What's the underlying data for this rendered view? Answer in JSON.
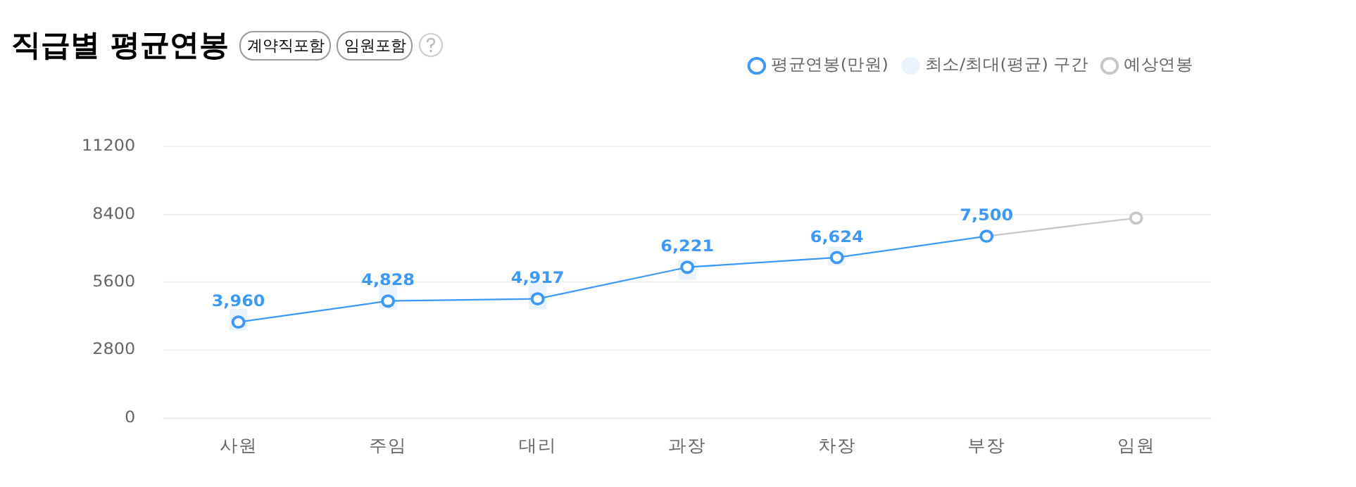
{
  "chart_data": {
    "type": "line",
    "title": "직급별 평균연봉",
    "annotations": [
      "계약직포함",
      "임원포함"
    ],
    "categories": [
      "사원",
      "주임",
      "대리",
      "과장",
      "차장",
      "부장",
      "임원"
    ],
    "series": [
      {
        "name": "평균연봉(만원)",
        "color": "#3d99f5",
        "values": [
          3960,
          4828,
          4917,
          6221,
          6624,
          7500,
          null
        ],
        "value_labels": [
          "3,960",
          "4,828",
          "4,917",
          "6,221",
          "6,624",
          "7,500",
          null
        ]
      },
      {
        "name": "최소/최대(평균) 구간",
        "type": "bar",
        "color": "#eaf2fb",
        "base": [
          3600,
          4490,
          4490,
          5700,
          6290,
          null,
          null
        ],
        "values": [
          900,
          1200,
          1140,
          800,
          780,
          null,
          null
        ]
      },
      {
        "name": "예상연봉",
        "color": "#c8c8c8",
        "values": [
          null,
          null,
          null,
          null,
          null,
          7500,
          8250
        ]
      }
    ],
    "ylim": [
      0,
      11200
    ],
    "yticks": [
      0,
      2800,
      5600,
      8400,
      11200
    ],
    "grid": "y",
    "legend": "top right",
    "marker": "circle"
  }
}
